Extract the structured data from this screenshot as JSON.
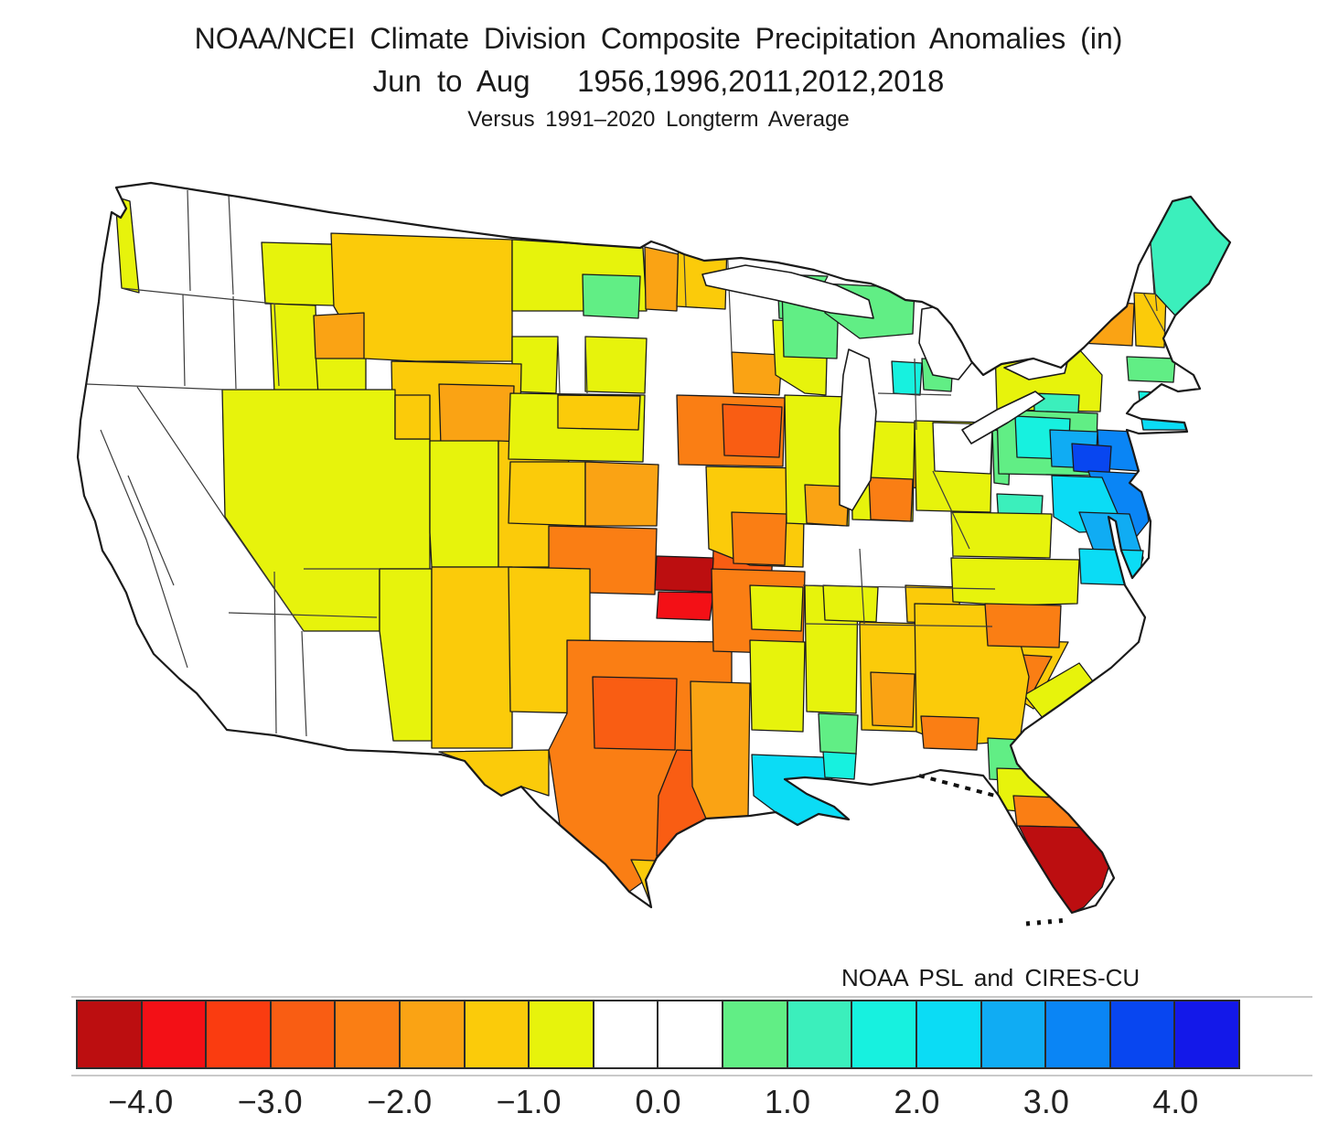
{
  "title": {
    "line1": "NOAA/NCEI Climate Division Composite Precipitation Anomalies (in)",
    "line2": "Jun to Aug   1956,1996,2011,2012,2018",
    "line3": "Versus 1991–2020 Longterm Average"
  },
  "attribution": "NOAA PSL and CIRES-CU",
  "colorbar": {
    "units": "in",
    "tick_labels": [
      "−4.0",
      "−3.0",
      "−2.0",
      "−1.0",
      "0.0",
      "1.0",
      "2.0",
      "3.0",
      "4.0"
    ],
    "segment_colors": [
      "#bc0e10",
      "#f31016",
      "#fa3c10",
      "#f95d13",
      "#fa7e14",
      "#faa314",
      "#fbcb0a",
      "#e7f30c",
      "#ffffff",
      "#ffffff",
      "#61ee85",
      "#3befbc",
      "#17f1df",
      "#0bdcf5",
      "#10acf3",
      "#0a85f5",
      "#0846f0",
      "#1318e9"
    ],
    "segment_edge_color": "#2b2b2b"
  },
  "chart_data": {
    "type": "choropleth_map",
    "region_scope": "U.S. climate divisions (continental United States)",
    "variable": "Composite precipitation anomaly",
    "units": "inches",
    "season": "Jun to Aug",
    "composite_years": [
      1956,
      1996,
      2011,
      2012,
      2018
    ],
    "baseline": "1991–2020 longterm average",
    "legend_position": "bottom",
    "color_scale": {
      "min": -4.5,
      "max": 4.5,
      "step": 0.5,
      "white_band": "-0.5 to +0.5"
    },
    "notable_features": [
      "Strong dry anomaly (−4 in or more) over central Oklahoma/Kansas border divisions",
      "Strong dry anomaly (−4 in or more) over South Florida",
      "Widespread −1 to −3 in anomalies over the Plains, Texas and the Midwest",
      "Wet anomalies (+2 to +4 in) over the Mid-Atlantic (PA/NJ/MD/DE/VA)",
      "Wet anomalies (+1 to +2 in) over Maine, upper Great Lakes and Louisiana delta",
      "Near-zero (white) anomalies along the West Coast, Arizona and the Appalachians"
    ],
    "regions": [
      {
        "id": "wa-coast",
        "value": -0.8
      },
      {
        "id": "id-n",
        "value": -0.8
      },
      {
        "id": "id-w",
        "value": -0.8
      },
      {
        "id": "id-se",
        "value": -0.8
      },
      {
        "id": "mt",
        "value": -1.3
      },
      {
        "id": "mt-sw",
        "value": -1.8
      },
      {
        "id": "nd",
        "value": -0.8
      },
      {
        "id": "nd-green",
        "value": 0.8
      },
      {
        "id": "nd-e",
        "value": -1.8
      },
      {
        "id": "mn-nw",
        "value": -1.3
      },
      {
        "id": "mn-ne",
        "value": 0.8
      },
      {
        "id": "mn-sw",
        "value": -1.8
      },
      {
        "id": "sd-w",
        "value": -0.8
      },
      {
        "id": "sd-e",
        "value": -0.8
      },
      {
        "id": "wy",
        "value": -1.3
      },
      {
        "id": "wy-e",
        "value": -1.8
      },
      {
        "id": "nv-ut",
        "value": -0.8
      },
      {
        "id": "ut-ne",
        "value": -1.3
      },
      {
        "id": "co-w",
        "value": -0.8
      },
      {
        "id": "co-e",
        "value": -1.3
      },
      {
        "id": "nm-w",
        "value": -0.8
      },
      {
        "id": "nm-e",
        "value": -1.3
      },
      {
        "id": "ne-base",
        "value": -0.8
      },
      {
        "id": "ne-gold",
        "value": -1.3
      },
      {
        "id": "ks-w",
        "value": -1.3
      },
      {
        "id": "ks-e",
        "value": -1.8
      },
      {
        "id": "ok",
        "value": -2.3
      },
      {
        "id": "ok-darkred",
        "value": -4.5
      },
      {
        "id": "ok-red",
        "value": -3.8
      },
      {
        "id": "ok-e",
        "value": -2.8
      },
      {
        "id": "tx-nw",
        "value": -1.3
      },
      {
        "id": "tx-w",
        "value": -1.3
      },
      {
        "id": "tx-central",
        "value": -2.3
      },
      {
        "id": "tx-c1",
        "value": -2.8
      },
      {
        "id": "tx-c2",
        "value": -2.8
      },
      {
        "id": "tx-s",
        "value": -1.3
      },
      {
        "id": "ia",
        "value": -2.3
      },
      {
        "id": "ia-c",
        "value": -2.8
      },
      {
        "id": "mo",
        "value": -1.3
      },
      {
        "id": "mo-se",
        "value": -2.3
      },
      {
        "id": "ar",
        "value": -2.3
      },
      {
        "id": "ar-y",
        "value": -0.8
      },
      {
        "id": "la-w",
        "value": -1.8
      },
      {
        "id": "la-ne",
        "value": -0.8
      },
      {
        "id": "la-delta",
        "value": 2.3
      },
      {
        "id": "ms",
        "value": -0.8
      },
      {
        "id": "ms-s-green",
        "value": 0.8
      },
      {
        "id": "ms-s-cyan",
        "value": 1.8
      },
      {
        "id": "al",
        "value": -1.3
      },
      {
        "id": "al-c",
        "value": -1.8
      },
      {
        "id": "tn-y",
        "value": -0.8
      },
      {
        "id": "ky-gold",
        "value": -1.3
      },
      {
        "id": "oh-se-orange",
        "value": -1.8
      },
      {
        "id": "il",
        "value": -0.8
      },
      {
        "id": "il-s",
        "value": -1.8
      },
      {
        "id": "in",
        "value": -0.8
      },
      {
        "id": "in-s",
        "value": -2.3
      },
      {
        "id": "oh",
        "value": -0.8
      },
      {
        "id": "oh-white",
        "value": 0.2
      },
      {
        "id": "oh-e-green",
        "value": 0.8
      },
      {
        "id": "wi",
        "value": -0.8
      },
      {
        "id": "wi-nw",
        "value": 0.8
      },
      {
        "id": "up",
        "value": 0.8
      },
      {
        "id": "mi-n-cyan",
        "value": 1.8
      },
      {
        "id": "mi-n-green",
        "value": 0.8
      },
      {
        "id": "ny",
        "value": -0.8
      },
      {
        "id": "ny-n-orange",
        "value": -1.8
      },
      {
        "id": "ny-n-gold",
        "value": -1.3
      },
      {
        "id": "ny-se-green",
        "value": 1.3
      },
      {
        "id": "pa",
        "value": 0.8
      },
      {
        "id": "pa-teal",
        "value": 1.8
      },
      {
        "id": "pa-blue",
        "value": 2.8
      },
      {
        "id": "njmd-deep",
        "value": 3.8
      },
      {
        "id": "nj",
        "value": 3.3
      },
      {
        "id": "md-de",
        "value": 3.3
      },
      {
        "id": "va-cyan",
        "value": 2.3
      },
      {
        "id": "va-e-blue",
        "value": 2.8
      },
      {
        "id": "nc-ne-cyan",
        "value": 2.3
      },
      {
        "id": "va-w",
        "value": -0.8
      },
      {
        "id": "va-green",
        "value": 1.3
      },
      {
        "id": "nc",
        "value": -0.8
      },
      {
        "id": "sc-gold",
        "value": -1.3
      },
      {
        "id": "sc-orange",
        "value": -2.3
      },
      {
        "id": "sc-coast",
        "value": -0.8
      },
      {
        "id": "ga",
        "value": -1.3
      },
      {
        "id": "ga-o1",
        "value": -2.3
      },
      {
        "id": "ga-o2",
        "value": -2.3
      },
      {
        "id": "fl-n-green",
        "value": 0.8
      },
      {
        "id": "fl-y",
        "value": -0.8
      },
      {
        "id": "fl-o",
        "value": -2.3
      },
      {
        "id": "fl-s",
        "value": -4.5
      },
      {
        "id": "me",
        "value": 1.3
      },
      {
        "id": "ma",
        "value": 0.8
      },
      {
        "id": "ct",
        "value": 1.8
      },
      {
        "id": "li",
        "value": 2.3
      }
    ]
  }
}
